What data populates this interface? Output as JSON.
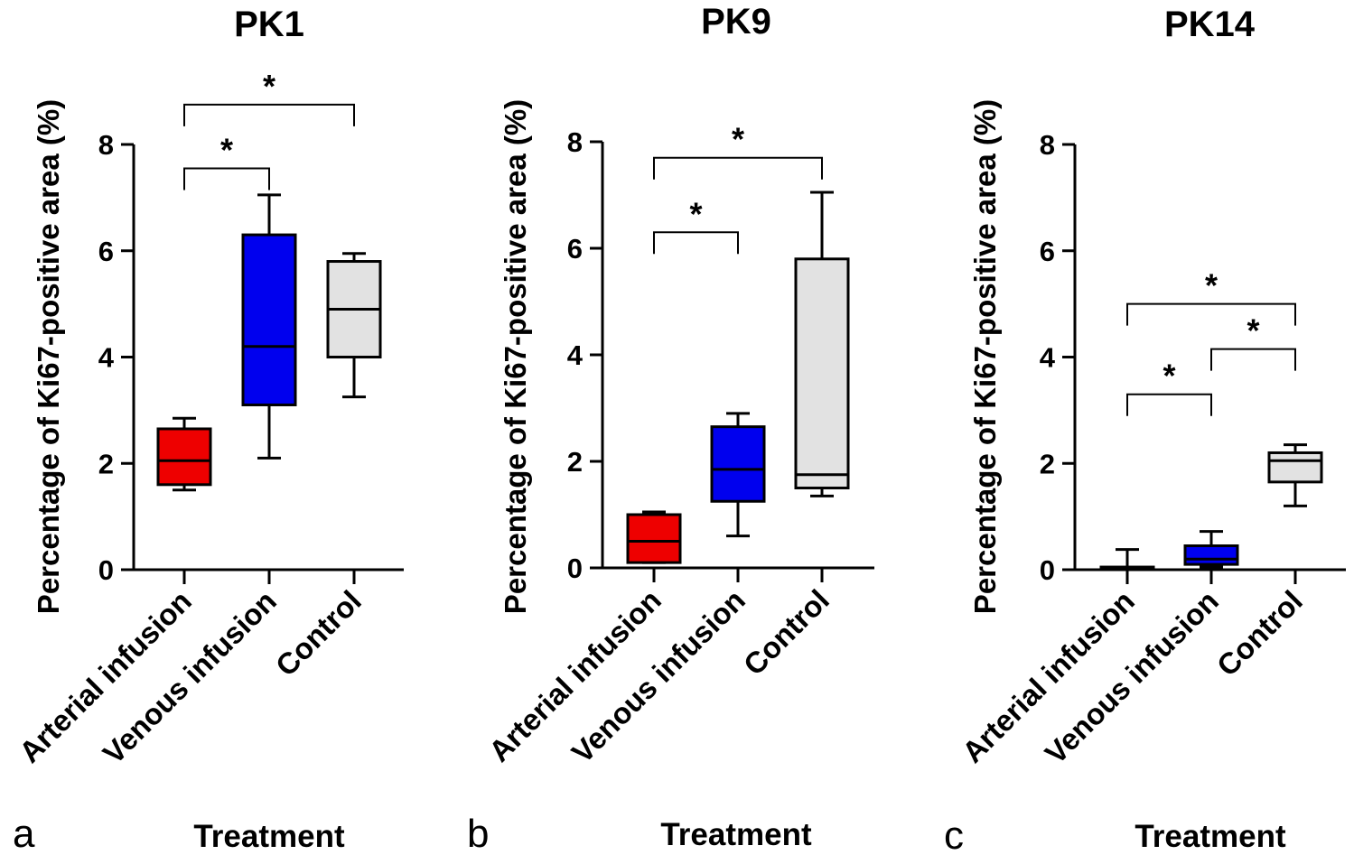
{
  "chart_data": [
    {
      "type": "box",
      "panel": "a",
      "title": "PK1",
      "xlabel": "Treatment",
      "ylabel": "Percentage of Ki67-positive area (%)",
      "ylim": [
        0,
        8
      ],
      "yticks": [
        "0",
        "2",
        "4",
        "6",
        "8"
      ],
      "categories": [
        "Arterial infusion",
        "Venous infusion",
        "Control"
      ],
      "colors": [
        "#ee0000",
        "#0000ee",
        "#e2e2e2"
      ],
      "boxes": [
        {
          "min": 1.5,
          "q1": 1.6,
          "median": 2.05,
          "q3": 2.65,
          "max": 2.85
        },
        {
          "min": 2.1,
          "q1": 3.1,
          "median": 4.2,
          "q3": 6.3,
          "max": 7.05
        },
        {
          "min": 3.25,
          "q1": 4.0,
          "median": 4.9,
          "q3": 5.8,
          "max": 5.95
        }
      ],
      "significance": [
        {
          "from": 0,
          "to": 1,
          "y": 7.55,
          "label": "*"
        },
        {
          "from": 0,
          "to": 2,
          "y": 8.75,
          "label": "*"
        }
      ]
    },
    {
      "type": "box",
      "panel": "b",
      "title": "PK9",
      "xlabel": "Treatment",
      "ylabel": "Percentage of Ki67-positive area (%)",
      "ylim": [
        0,
        8
      ],
      "yticks": [
        "0",
        "2",
        "4",
        "6",
        "8"
      ],
      "categories": [
        "Arterial infusion",
        "Venous infusion",
        "Control"
      ],
      "colors": [
        "#ee0000",
        "#0000ee",
        "#e2e2e2"
      ],
      "boxes": [
        {
          "min": 0.1,
          "q1": 0.1,
          "median": 0.5,
          "q3": 1.0,
          "max": 1.05
        },
        {
          "min": 0.6,
          "q1": 1.25,
          "median": 1.85,
          "q3": 2.65,
          "max": 2.9
        },
        {
          "min": 1.35,
          "q1": 1.5,
          "median": 1.75,
          "q3": 5.8,
          "max": 7.05
        }
      ],
      "significance": [
        {
          "from": 0,
          "to": 1,
          "y": 6.3,
          "label": "*"
        },
        {
          "from": 0,
          "to": 2,
          "y": 7.7,
          "label": "*"
        }
      ]
    },
    {
      "type": "box",
      "panel": "c",
      "title": "PK14",
      "xlabel": "Treatment",
      "ylabel": "Percentage of Ki67-positive area (%)",
      "ylim": [
        0,
        8
      ],
      "yticks": [
        "0",
        "2",
        "4",
        "6",
        "8"
      ],
      "categories": [
        "Arterial infusion",
        "Venous infusion",
        "Control"
      ],
      "colors": [
        "#ee0000",
        "#0000ee",
        "#e2e2e2"
      ],
      "boxes": [
        {
          "min": 0.0,
          "q1": 0.0,
          "median": 0.02,
          "q3": 0.05,
          "max": 0.38
        },
        {
          "min": 0.05,
          "q1": 0.1,
          "median": 0.2,
          "q3": 0.45,
          "max": 0.72
        },
        {
          "min": 1.2,
          "q1": 1.65,
          "median": 2.05,
          "q3": 2.2,
          "max": 2.35
        }
      ],
      "significance": [
        {
          "from": 0,
          "to": 1,
          "y": 3.3,
          "label": "*"
        },
        {
          "from": 1,
          "to": 2,
          "y": 4.15,
          "label": "*"
        },
        {
          "from": 0,
          "to": 2,
          "y": 5.0,
          "label": "*"
        }
      ]
    }
  ]
}
